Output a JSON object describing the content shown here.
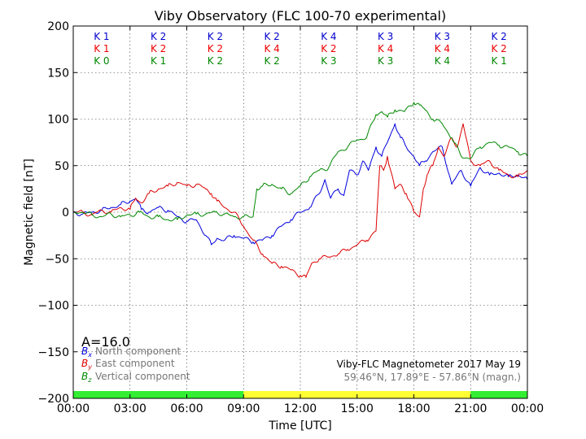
{
  "chart_data": {
    "type": "line",
    "title": "Viby Observatory (FLC 100-70 experimental)",
    "xlabel": "Time [UTC]",
    "ylabel": "Magnetic field [nT]",
    "xlim": [
      "00:00",
      "24:00"
    ],
    "ylim": [
      -200,
      200
    ],
    "x_ticks": [
      "00:00",
      "03:00",
      "06:00",
      "09:00",
      "12:00",
      "15:00",
      "18:00",
      "21:00",
      "00:00"
    ],
    "y_ticks": [
      200,
      150,
      100,
      50,
      0,
      -50,
      -100,
      -150,
      -200
    ],
    "y_tick_labels": [
      "200",
      "150",
      "100",
      "50",
      "0",
      "−50",
      "−100",
      "−150",
      "−200"
    ],
    "grid": true,
    "k_index_rows": [
      {
        "color": "#0000cc",
        "labels": [
          "K 1",
          "K 2",
          "K 2",
          "K 2",
          "K 4",
          "K 3",
          "K 3",
          "K 2"
        ]
      },
      {
        "color": "#ee0000",
        "labels": [
          "K 1",
          "K 2",
          "K 2",
          "K 4",
          "K 2",
          "K 4",
          "K 4",
          "K 2"
        ]
      },
      {
        "color": "#008800",
        "labels": [
          "K 0",
          "K 1",
          "K 2",
          "K 2",
          "K 3",
          "K 3",
          "K 4",
          "K 1"
        ]
      }
    ],
    "a_index": "A=16.0",
    "daylight_bar": [
      {
        "from": 0,
        "to": 9,
        "color": "#33ee33"
      },
      {
        "from": 9,
        "to": 21,
        "color": "#ffff33"
      },
      {
        "from": 21,
        "to": 24,
        "color": "#33ee33"
      }
    ],
    "legend": {
      "placement": "bottom-left",
      "entries": [
        {
          "symbol": "B",
          "sub": "x",
          "label": "North component",
          "color": "#0000dd"
        },
        {
          "symbol": "B",
          "sub": "y",
          "label": "East component",
          "color": "#dd0000"
        },
        {
          "symbol": "B",
          "sub": "z",
          "label": "Vertical component",
          "color": "#008800"
        }
      ]
    },
    "info": {
      "line1": "Viby-FLC Magnetometer 2017 May 19",
      "line2": "59.46°N, 17.89°E - 57.86°N (magn.)"
    },
    "series": [
      {
        "name": "North component",
        "color": "#0000dd",
        "x": [
          0,
          0.5,
          1,
          1.5,
          2,
          2.5,
          3,
          3.3,
          3.6,
          4,
          4.5,
          5,
          5.5,
          6,
          6.5,
          7,
          7.3,
          7.6,
          8,
          8.5,
          9,
          9.5,
          10,
          10.5,
          11,
          11.5,
          12,
          12.5,
          13,
          13.3,
          13.6,
          14,
          14.3,
          14.6,
          15,
          15.3,
          15.6,
          16,
          16.3,
          16.6,
          17,
          17.3,
          17.6,
          18,
          18.3,
          18.6,
          19,
          19.5,
          20,
          20.5,
          21,
          21.5,
          22,
          22.5,
          23,
          23.5,
          24
        ],
        "y": [
          0,
          -2,
          0,
          2,
          5,
          8,
          12,
          15,
          3,
          0,
          5,
          2,
          -5,
          -10,
          -8,
          -25,
          -35,
          -28,
          -30,
          -25,
          -28,
          -32,
          -30,
          -25,
          -15,
          -8,
          0,
          5,
          20,
          35,
          15,
          25,
          18,
          45,
          40,
          55,
          45,
          70,
          60,
          75,
          95,
          80,
          70,
          60,
          50,
          55,
          65,
          70,
          30,
          45,
          28,
          48,
          40,
          42,
          38,
          40,
          35
        ]
      },
      {
        "name": "East component",
        "color": "#dd0000",
        "x": [
          0,
          0.5,
          1,
          1.5,
          2,
          2.5,
          3,
          3.3,
          3.6,
          4,
          4.5,
          5,
          5.5,
          6,
          6.5,
          7,
          7.3,
          7.6,
          8,
          8.5,
          9,
          9.5,
          10,
          10.5,
          11,
          11.5,
          12,
          12.3,
          12.6,
          13,
          13.5,
          14,
          14.5,
          15,
          15.5,
          16,
          16.2,
          16.4,
          16.6,
          17,
          17.3,
          17.6,
          18,
          18.3,
          18.5,
          18.7,
          19,
          19.3,
          19.6,
          20,
          20.3,
          20.6,
          21,
          21.5,
          22,
          22.5,
          23,
          23.5,
          24
        ],
        "y": [
          0,
          0,
          -3,
          2,
          0,
          5,
          3,
          15,
          10,
          20,
          25,
          28,
          32,
          28,
          30,
          25,
          20,
          12,
          5,
          0,
          -15,
          -30,
          -45,
          -55,
          -58,
          -62,
          -68,
          -70,
          -55,
          -50,
          -48,
          -45,
          -40,
          -35,
          -30,
          -20,
          50,
          45,
          60,
          25,
          30,
          20,
          0,
          -5,
          25,
          40,
          50,
          70,
          60,
          80,
          70,
          95,
          55,
          50,
          55,
          45,
          40,
          38,
          45
        ]
      },
      {
        "name": "Vertical component",
        "color": "#008800",
        "x": [
          0,
          0.5,
          1,
          1.5,
          2,
          2.5,
          3,
          3.5,
          4,
          4.5,
          5,
          5.5,
          6,
          6.5,
          7,
          7.5,
          8,
          8.5,
          9,
          9.5,
          9.7,
          10,
          10.5,
          11,
          11.5,
          12,
          12.5,
          13,
          13.5,
          14,
          14.5,
          15,
          15.5,
          16,
          16.3,
          16.6,
          17,
          17.5,
          18,
          18.3,
          18.6,
          19,
          19.5,
          20,
          20.5,
          21,
          21.5,
          22,
          22.5,
          23,
          23.5,
          24
        ],
        "y": [
          0,
          0,
          -3,
          -5,
          -2,
          -5,
          -3,
          0,
          -5,
          -5,
          -8,
          -8,
          -3,
          -2,
          -2,
          0,
          -2,
          -5,
          -5,
          -5,
          25,
          28,
          30,
          25,
          20,
          28,
          38,
          45,
          48,
          65,
          70,
          78,
          80,
          105,
          108,
          102,
          110,
          108,
          118,
          115,
          110,
          100,
          95,
          80,
          60,
          58,
          70,
          75,
          72,
          70,
          65,
          60
        ]
      }
    ]
  }
}
